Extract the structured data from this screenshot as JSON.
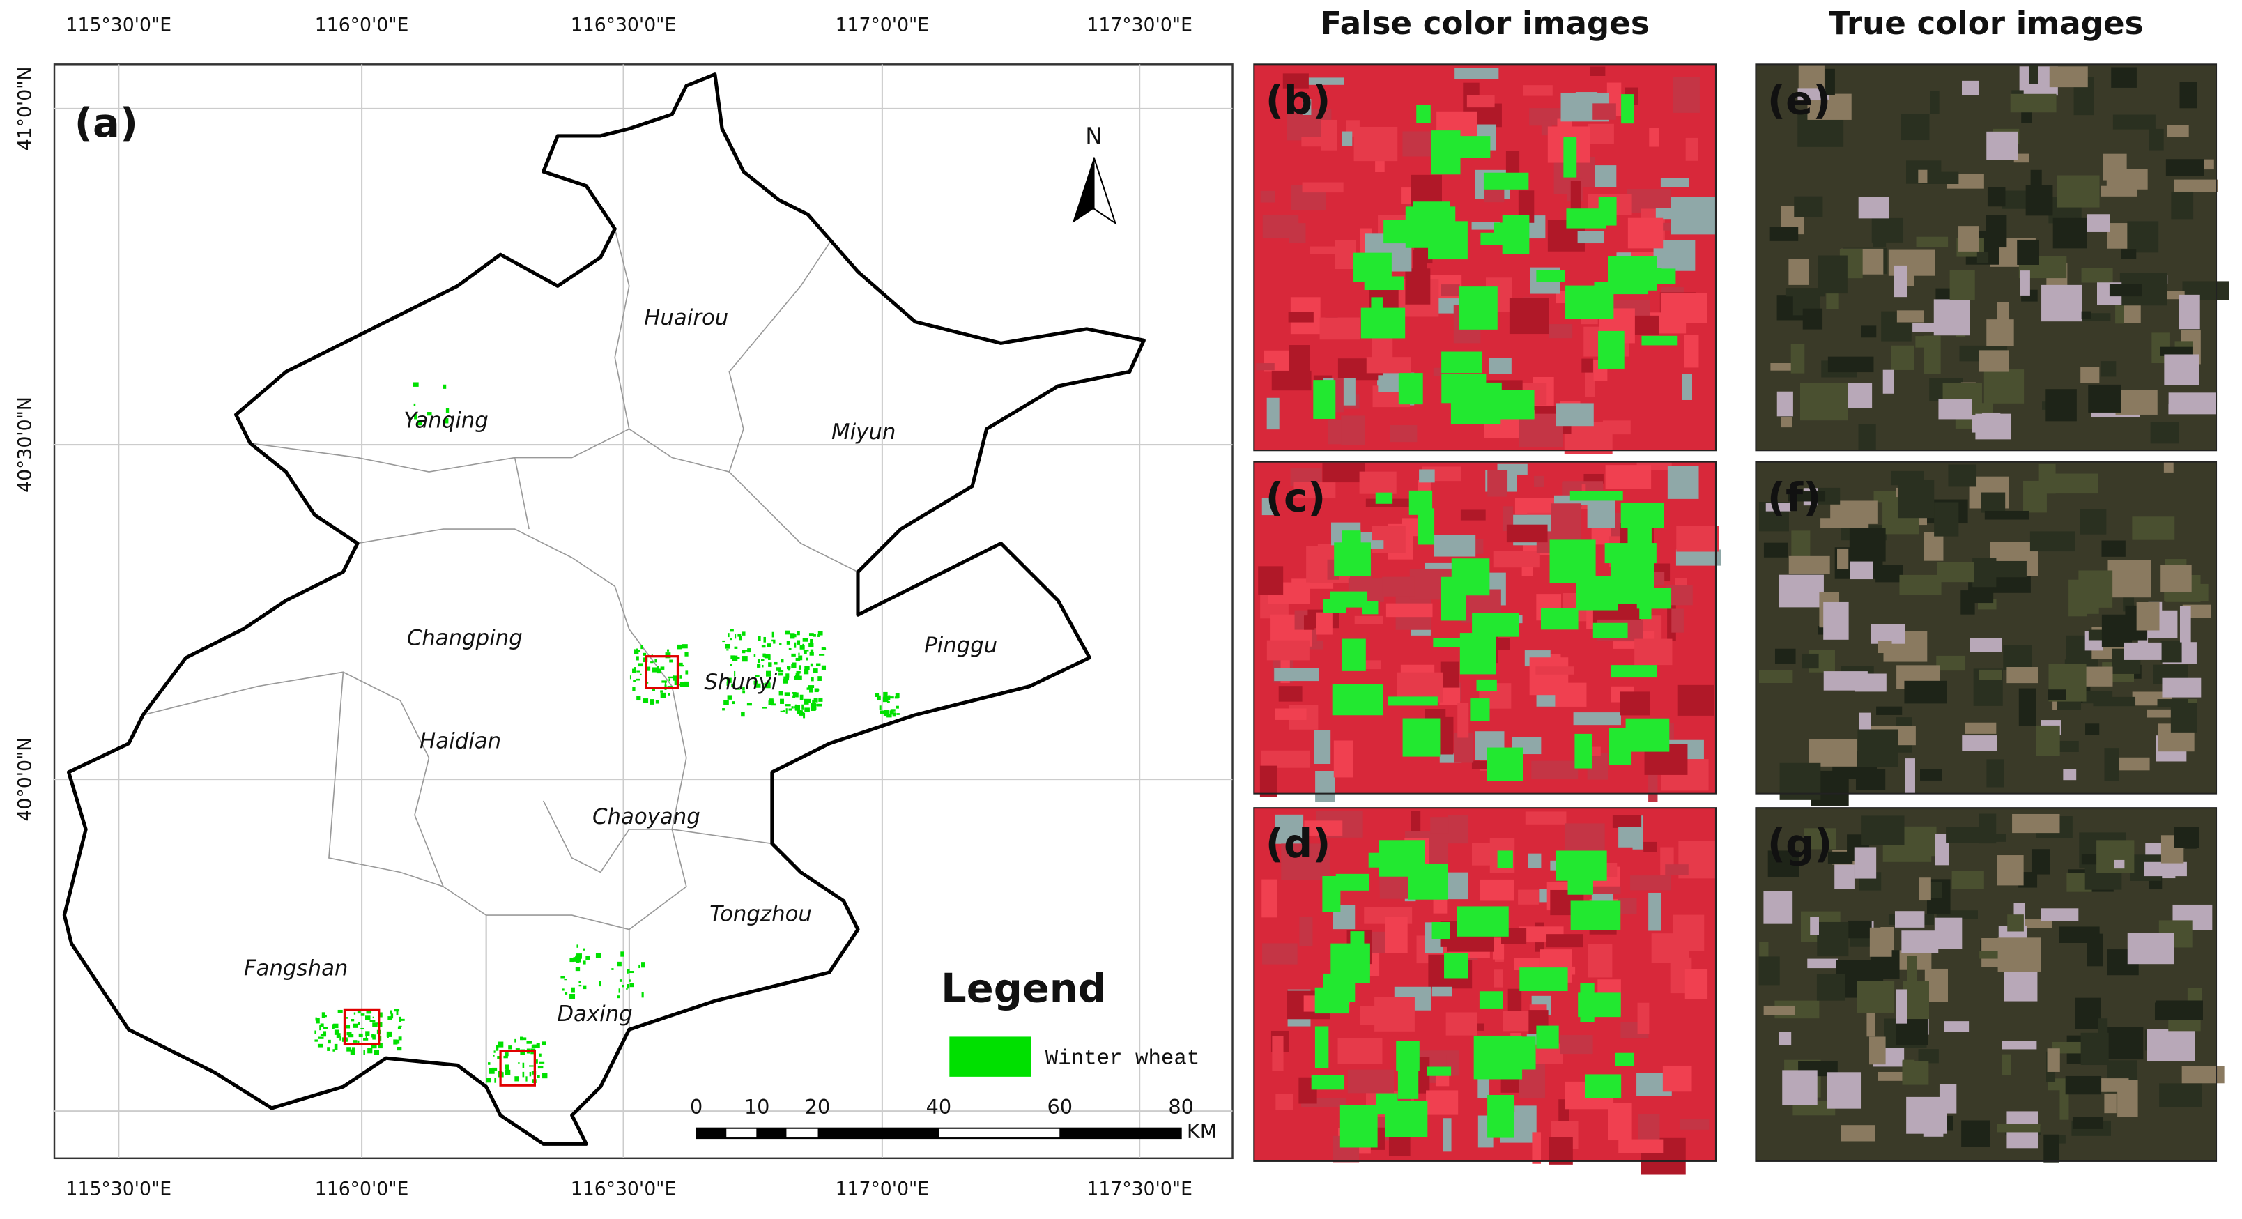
{
  "map": {
    "panel_label": "(a)",
    "top_labels": [
      "115°30'0\"E",
      "116°0'0\"E",
      "116°30'0\"E",
      "117°0'0\"E",
      "117°30'0\"E"
    ],
    "bottom_labels": [
      "115°30'0\"E",
      "116°0'0\"E",
      "116°30'0\"E",
      "117°0'0\"E",
      "117°30'0\"E"
    ],
    "left_labels": [
      "41°0'0\"N",
      "40°30'0\"N",
      "40°0'0\"N"
    ],
    "north": "N",
    "districts": [
      "Huairou",
      "Yanqing",
      "Miyun",
      "Changping",
      "Shunyi",
      "Pinggu",
      "Haidian",
      "Chaoyang",
      "Tongzhou",
      "Fangshan",
      "Daxing"
    ],
    "legend": {
      "title": "Legend",
      "item": "Winter wheat"
    },
    "scale": {
      "ticks": [
        0,
        10,
        20,
        40,
        60,
        80
      ],
      "unit": "KM"
    }
  },
  "false_color": {
    "title": "False color images",
    "panels": [
      "(b)",
      "(c)",
      "(d)"
    ]
  },
  "true_color": {
    "title": "True color images",
    "panels": [
      "(e)",
      "(f)",
      "(g)"
    ]
  }
}
